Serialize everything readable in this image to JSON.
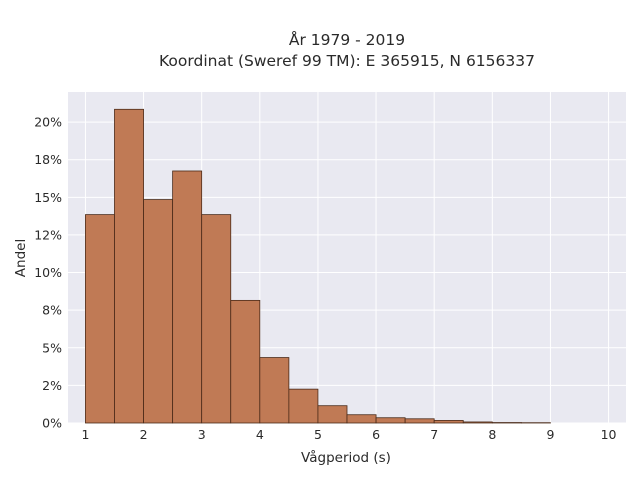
{
  "chart_data": {
    "type": "bar",
    "title_lines": [
      "År 1979 - 2019",
      "Koordinat (Sweref 99 TM): E 365915, N 6156337"
    ],
    "xlabel": "Vågperiod (s)",
    "ylabel": "Andel",
    "bin_width": 0.5,
    "bin_starts": [
      1.0,
      1.5,
      2.0,
      2.5,
      3.0,
      3.5,
      4.0,
      4.5,
      5.0,
      5.5,
      6.0,
      6.5,
      7.0,
      7.5,
      8.0,
      8.5
    ],
    "values": [
      0.1385,
      0.2085,
      0.1485,
      0.1675,
      0.1385,
      0.0815,
      0.0435,
      0.0225,
      0.0115,
      0.0055,
      0.0035,
      0.0028,
      0.0017,
      0.0007,
      0.0003,
      0.0002
    ],
    "xlim": [
      0.7,
      10.3
    ],
    "ylim": [
      0,
      0.22
    ],
    "x_ticks": [
      1,
      2,
      3,
      4,
      5,
      6,
      7,
      8,
      9,
      10
    ],
    "x_tick_labels": [
      "1",
      "2",
      "3",
      "4",
      "5",
      "6",
      "7",
      "8",
      "9",
      "10"
    ],
    "y_ticks": [
      0,
      0.025,
      0.05,
      0.075,
      0.1,
      0.125,
      0.15,
      0.175,
      0.2
    ],
    "y_tick_labels": [
      "0%",
      "2%",
      "5%",
      "8%",
      "10%",
      "12%",
      "15%",
      "18%",
      "20%"
    ],
    "grid": true,
    "colors": {
      "bar_fill": "#c07a55",
      "bar_edge": "#4a2a18",
      "plot_background": "#e9e9f1",
      "grid": "#ffffff"
    }
  }
}
